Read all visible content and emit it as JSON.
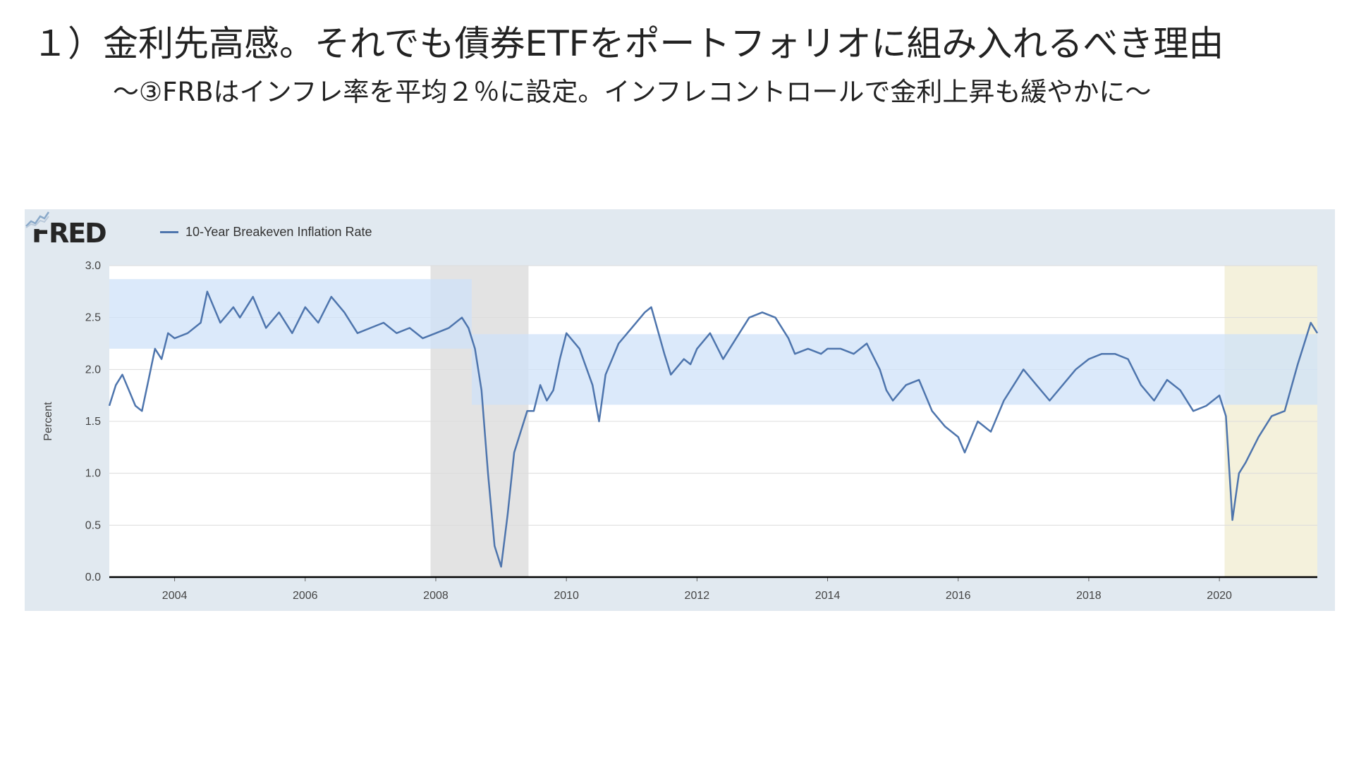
{
  "header": {
    "title": "１）金利先高感。それでも債券ETFをポートフォリオに組み入れるべき理由",
    "subtitle": "〜③FRBはインフレ率を平均２％に設定。インフレコントロールで金利上昇も緩やかに〜"
  },
  "chart_header": {
    "logo_text": "FRED",
    "logo_icon": "trend-chart-icon"
  },
  "colors": {
    "series": "#4e75ad",
    "recession_shade": "#e3e3e3",
    "highlight_band": "#cfe2f8",
    "covid_shade": "#f4f1dc",
    "panel_bg": "#e1e9f0"
  },
  "chart_data": {
    "type": "line",
    "ylabel": "Percent",
    "ylim": [
      0,
      3
    ],
    "xlim": [
      2003.0,
      2021.5
    ],
    "yticks": [
      "0.0",
      "0.5",
      "1.0",
      "1.5",
      "2.0",
      "2.5",
      "3.0"
    ],
    "xticks": [
      "2004",
      "2006",
      "2008",
      "2010",
      "2012",
      "2014",
      "2016",
      "2018",
      "2020"
    ],
    "grid": true,
    "legend_position": "top-left",
    "series": [
      {
        "name": "10-Year Breakeven Inflation Rate",
        "x": [
          2003.0,
          2003.1,
          2003.2,
          2003.3,
          2003.4,
          2003.5,
          2003.6,
          2003.7,
          2003.8,
          2003.9,
          2004.0,
          2004.2,
          2004.4,
          2004.5,
          2004.7,
          2004.9,
          2005.0,
          2005.2,
          2005.4,
          2005.6,
          2005.8,
          2006.0,
          2006.2,
          2006.4,
          2006.6,
          2006.8,
          2007.0,
          2007.2,
          2007.4,
          2007.6,
          2007.8,
          2008.0,
          2008.2,
          2008.4,
          2008.5,
          2008.6,
          2008.7,
          2008.8,
          2008.9,
          2009.0,
          2009.1,
          2009.2,
          2009.4,
          2009.5,
          2009.6,
          2009.7,
          2009.8,
          2009.9,
          2010.0,
          2010.2,
          2010.4,
          2010.5,
          2010.6,
          2010.7,
          2010.8,
          2011.0,
          2011.2,
          2011.3,
          2011.5,
          2011.6,
          2011.8,
          2011.9,
          2012.0,
          2012.2,
          2012.4,
          2012.6,
          2012.8,
          2013.0,
          2013.2,
          2013.4,
          2013.5,
          2013.7,
          2013.9,
          2014.0,
          2014.2,
          2014.4,
          2014.6,
          2014.8,
          2014.9,
          2015.0,
          2015.2,
          2015.4,
          2015.6,
          2015.8,
          2016.0,
          2016.1,
          2016.3,
          2016.5,
          2016.7,
          2016.9,
          2017.0,
          2017.2,
          2017.4,
          2017.6,
          2017.8,
          2018.0,
          2018.2,
          2018.4,
          2018.6,
          2018.8,
          2019.0,
          2019.2,
          2019.4,
          2019.6,
          2019.8,
          2020.0,
          2020.1,
          2020.2,
          2020.3,
          2020.4,
          2020.6,
          2020.8,
          2021.0,
          2021.2,
          2021.3,
          2021.4,
          2021.5
        ],
        "values": [
          1.65,
          1.85,
          1.95,
          1.8,
          1.65,
          1.6,
          1.9,
          2.2,
          2.1,
          2.35,
          2.3,
          2.35,
          2.45,
          2.75,
          2.45,
          2.6,
          2.5,
          2.7,
          2.4,
          2.55,
          2.35,
          2.6,
          2.45,
          2.7,
          2.55,
          2.35,
          2.4,
          2.45,
          2.35,
          2.4,
          2.3,
          2.35,
          2.4,
          2.5,
          2.4,
          2.2,
          1.8,
          1.0,
          0.3,
          0.1,
          0.6,
          1.2,
          1.6,
          1.6,
          1.85,
          1.7,
          1.8,
          2.1,
          2.35,
          2.2,
          1.85,
          1.5,
          1.95,
          2.1,
          2.25,
          2.4,
          2.55,
          2.6,
          2.15,
          1.95,
          2.1,
          2.05,
          2.2,
          2.35,
          2.1,
          2.3,
          2.5,
          2.55,
          2.5,
          2.3,
          2.15,
          2.2,
          2.15,
          2.2,
          2.2,
          2.15,
          2.25,
          2.0,
          1.8,
          1.7,
          1.85,
          1.9,
          1.6,
          1.45,
          1.35,
          1.2,
          1.5,
          1.4,
          1.7,
          1.9,
          2.0,
          1.85,
          1.7,
          1.85,
          2.0,
          2.1,
          2.15,
          2.15,
          2.1,
          1.85,
          1.7,
          1.9,
          1.8,
          1.6,
          1.65,
          1.75,
          1.55,
          0.55,
          1.0,
          1.1,
          1.35,
          1.55,
          1.6,
          2.05,
          2.25,
          2.45,
          2.35
        ]
      }
    ],
    "annotations": [
      {
        "type": "band",
        "x0": 2003.0,
        "x1": 2008.55,
        "y0": 2.2,
        "y1": 2.87
      },
      {
        "type": "band",
        "x0": 2008.55,
        "x1": 2021.5,
        "y0": 1.66,
        "y1": 2.34
      },
      {
        "type": "recession",
        "x0": 2007.92,
        "x1": 2009.42
      },
      {
        "type": "recession",
        "x0": 2020.08,
        "x1": 2021.5
      }
    ]
  }
}
